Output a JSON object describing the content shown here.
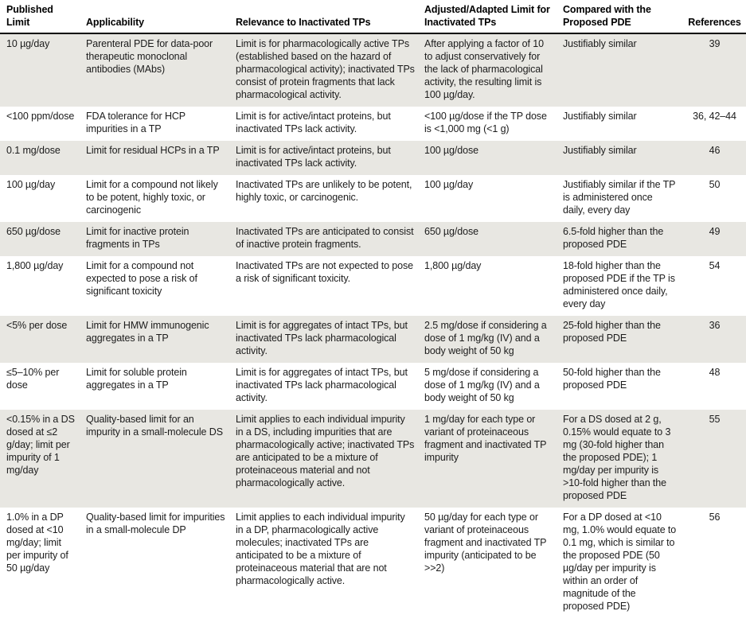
{
  "table": {
    "columns": [
      {
        "label": "Published Limit"
      },
      {
        "label": "Applicability"
      },
      {
        "label": "Relevance to Inactivated TPs"
      },
      {
        "label": "Adjusted/Adapted Limit for Inactivated TPs"
      },
      {
        "label": "Compared with the Proposed PDE"
      },
      {
        "label": "References"
      }
    ],
    "rows": [
      {
        "published_limit": "10 µg/day",
        "applicability": "Parenteral PDE for data-poor therapeutic monoclonal antibodies (MAbs)",
        "relevance": "Limit is for pharmacologically active TPs (established based on the hazard of pharmacological activity); inactivated TPs consist of protein fragments that lack pharmacological activity.",
        "adjusted_limit": "After applying a factor of 10 to adjust conservatively for the lack of pharmacological activity, the resulting limit is 100 µg/day.",
        "compared_pde": "Justifiably similar",
        "references": "39"
      },
      {
        "published_limit": "<100 ppm/dose",
        "applicability": "FDA tolerance for HCP impurities in a TP",
        "relevance": "Limit is for active/intact proteins, but inactivated TPs lack activity.",
        "adjusted_limit": "<100 µg/dose if the TP dose is <1,000 mg (<1 g)",
        "compared_pde": "Justifiably similar",
        "references": "36, 42–44"
      },
      {
        "published_limit": "0.1 mg/dose",
        "applicability": "Limit for residual HCPs in a TP",
        "relevance": "Limit is for active/intact proteins, but inactivated TPs lack activity.",
        "adjusted_limit": "100 µg/dose",
        "compared_pde": "Justifiably similar",
        "references": "46"
      },
      {
        "published_limit": "100 µg/day",
        "applicability": "Limit for a compound not likely to be potent, highly toxic, or carcinogenic",
        "relevance": "Inactivated TPs are unlikely to be potent, highly toxic, or carcinogenic.",
        "adjusted_limit": "100 µg/day",
        "compared_pde": "Justifiably similar if the TP is administered once daily, every day",
        "references": "50"
      },
      {
        "published_limit": "650 µg/dose",
        "applicability": "Limit for inactive protein fragments in TPs",
        "relevance": "Inactivated TPs are anticipated to consist of inactive protein fragments.",
        "adjusted_limit": "650 µg/dose",
        "compared_pde": "6.5-fold higher than the proposed PDE",
        "references": "49"
      },
      {
        "published_limit": "1,800 µg/day",
        "applicability": "Limit for a compound not expected to pose a risk of significant toxicity",
        "relevance": "Inactivated TPs are not expected to pose a risk of significant toxicity.",
        "adjusted_limit": "1,800 µg/day",
        "compared_pde": "18-fold higher than the proposed PDE if the TP is administered once daily, every day",
        "references": "54"
      },
      {
        "published_limit": "<5% per dose",
        "applicability": "Limit for HMW immunogenic aggregates in a TP",
        "relevance": "Limit is for aggregates of intact TPs, but inactivated TPs lack pharmacological activity.",
        "adjusted_limit": "2.5 mg/dose if considering a dose of 1 mg/kg (IV) and a body weight of 50 kg",
        "compared_pde": "25-fold higher than the proposed PDE",
        "references": "36"
      },
      {
        "published_limit": "≤5–10% per dose",
        "applicability": "Limit for soluble protein aggregates in a TP",
        "relevance": "Limit is for aggregates of intact TPs, but inactivated TPs lack pharmacological activity.",
        "adjusted_limit": "5 mg/dose if considering a dose of 1 mg/kg (IV) and a body weight of 50 kg",
        "compared_pde": "50-fold higher than the proposed PDE",
        "references": "48"
      },
      {
        "published_limit": "<0.15% in a DS dosed at ≤2 g/day; limit per impurity of 1 mg/day",
        "applicability": "Quality-based limit for an impurity in a small-molecule DS",
        "relevance": "Limit applies to each individual impurity in a DS, including impurities that are pharmacologically active; inactivated TPs are anticipated to be a mixture of proteinaceous material and not pharmacologically active.",
        "adjusted_limit": "1 mg/day for each type or variant of proteinaceous fragment and inactivated TP impurity",
        "compared_pde": "For a DS dosed at 2 g, 0.15% would equate to 3 mg (30-fold higher than the proposed PDE); 1 mg/day per impurity is >10-fold higher than the proposed PDE",
        "references": "55"
      },
      {
        "published_limit": "1.0% in a DP dosed at <10 mg/day; limit per impurity of 50 µg/day",
        "applicability": "Quality-based limit for impurities in a small-molecule DP",
        "relevance": "Limit applies to each individual impurity in a DP, pharmacologically active molecules; inactivated TPs are anticipated to be a mixture of proteinaceous material that are not pharmacologically active.",
        "adjusted_limit": "50 µg/day for each type or variant of proteinaceous fragment and inactivated TP impurity (anticipated to be >>2)",
        "compared_pde": "For a DP dosed at <10 mg, 1.0% would equate to 0.1 mg, which is similar to the proposed PDE (50 µg/day per impurity is within an order of magnitude of the proposed PDE)",
        "references": "56"
      }
    ]
  },
  "colors": {
    "row_shade": "#e8e7e2",
    "text": "#1c1c1c",
    "header_rule": "#000000"
  }
}
